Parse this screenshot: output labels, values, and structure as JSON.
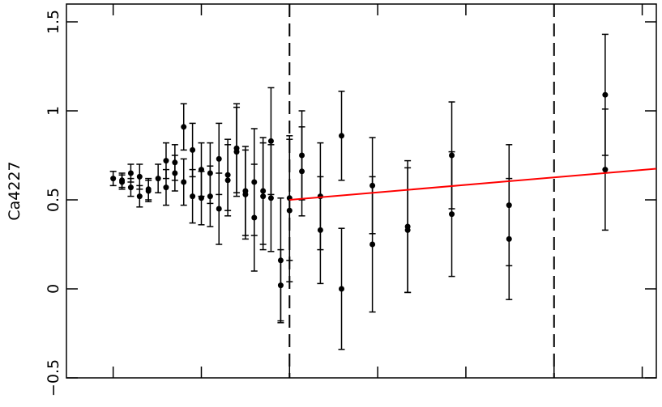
{
  "chart_data": {
    "type": "errorbar-scatter",
    "ylabel": "Ca4227",
    "x": [
      1.0,
      1.1,
      1.1,
      1.2,
      1.2,
      1.3,
      1.3,
      1.4,
      1.4,
      1.51,
      1.6,
      1.6,
      1.7,
      1.7,
      1.8,
      1.8,
      1.9,
      1.9,
      2.0,
      2.0,
      2.1,
      2.1,
      2.2,
      2.2,
      2.3,
      2.3,
      2.4,
      2.4,
      2.5,
      2.5,
      2.6,
      2.6,
      2.7,
      2.7,
      2.79,
      2.79,
      2.9,
      2.9,
      3.0,
      3.0,
      3.14,
      3.14,
      3.35,
      3.35,
      3.59,
      3.59,
      3.94,
      3.94,
      4.34,
      4.34,
      4.84,
      4.84,
      5.49,
      5.49,
      6.58,
      6.58
    ],
    "values": [
      0.62,
      0.61,
      0.6,
      0.65,
      0.57,
      0.63,
      0.52,
      0.56,
      0.55,
      0.62,
      0.72,
      0.57,
      0.71,
      0.65,
      0.91,
      0.6,
      0.78,
      0.52,
      0.67,
      0.51,
      0.65,
      0.52,
      0.73,
      0.45,
      0.64,
      0.61,
      0.79,
      0.77,
      0.53,
      0.55,
      0.6,
      0.4,
      0.55,
      0.52,
      0.83,
      0.51,
      0.16,
      0.02,
      0.51,
      0.44,
      0.75,
      0.66,
      0.52,
      0.33,
      0.86,
      0.0,
      0.58,
      0.25,
      0.35,
      0.33,
      0.75,
      0.42,
      0.47,
      0.28,
      1.09,
      0.67
    ],
    "errors": [
      0.04,
      0.04,
      0.04,
      0.05,
      0.05,
      0.07,
      0.06,
      0.06,
      0.06,
      0.08,
      0.1,
      0.1,
      0.1,
      0.1,
      0.13,
      0.13,
      0.15,
      0.15,
      0.15,
      0.15,
      0.17,
      0.17,
      0.2,
      0.2,
      0.2,
      0.2,
      0.25,
      0.25,
      0.25,
      0.25,
      0.3,
      0.3,
      0.3,
      0.3,
      0.3,
      0.3,
      0.35,
      0.2,
      0.35,
      0.4,
      0.25,
      0.25,
      0.3,
      0.3,
      0.25,
      0.34,
      0.27,
      0.38,
      0.37,
      0.35,
      0.3,
      0.35,
      0.34,
      0.34,
      0.34,
      0.34
    ],
    "color": "#000000",
    "fit": {
      "x": [
        3.0,
        7.16
      ],
      "values": [
        0.5,
        0.675
      ],
      "color": "#ff0000"
    },
    "vlines": [
      3,
      6
    ],
    "xlim": [
      0.47,
      7.16
    ],
    "ylim": [
      -0.5,
      1.6
    ],
    "xticks": [
      1,
      2,
      3,
      4,
      5,
      6,
      7
    ],
    "yticks": [
      {
        "value": -0.5,
        "label": "−0.5"
      },
      0,
      0.5,
      1,
      1.5
    ]
  }
}
